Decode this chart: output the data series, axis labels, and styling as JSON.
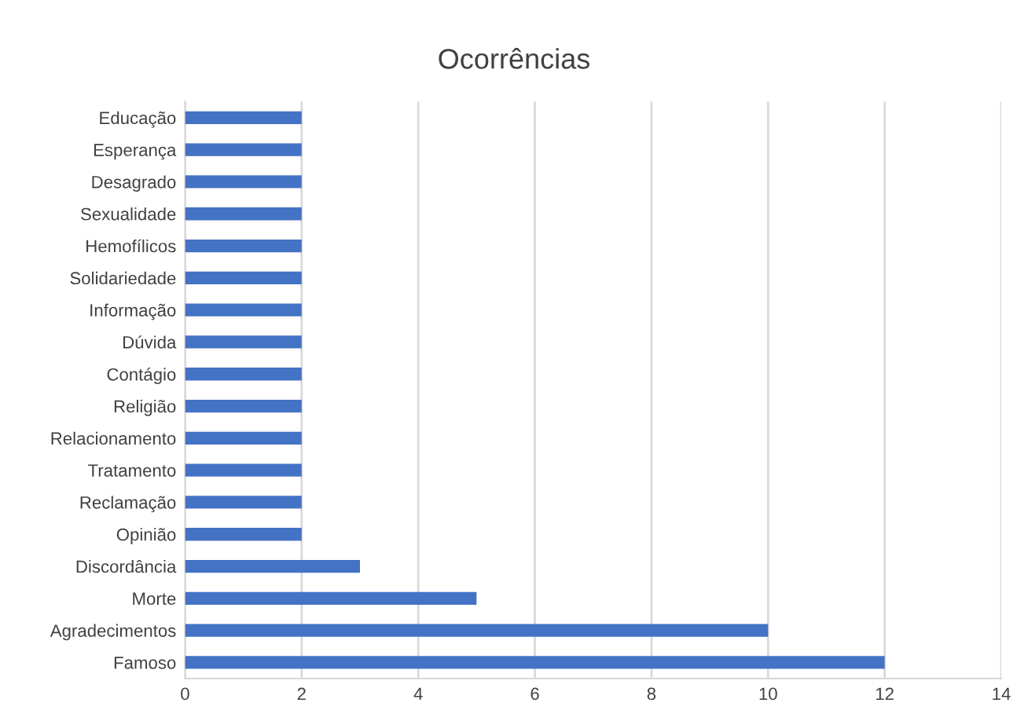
{
  "chart_data": {
    "type": "bar",
    "orientation": "horizontal",
    "title": "Ocorrências",
    "categories": [
      "Educação",
      "Esperança",
      "Desagrado",
      "Sexualidade",
      "Hemofílicos",
      "Solidariedade",
      "Informação",
      "Dúvida",
      "Contágio",
      "Religião",
      "Relacionamento",
      "Tratamento",
      "Reclamação",
      "Opinião",
      "Discordância",
      "Morte",
      "Agradecimentos",
      "Famoso"
    ],
    "values": [
      2,
      2,
      2,
      2,
      2,
      2,
      2,
      2,
      2,
      2,
      2,
      2,
      2,
      2,
      3,
      5,
      10,
      12
    ],
    "color": "#4472c4",
    "xlim": [
      0,
      14
    ],
    "xticks": [
      0,
      2,
      4,
      6,
      8,
      10,
      12,
      14
    ],
    "grid": "x"
  }
}
